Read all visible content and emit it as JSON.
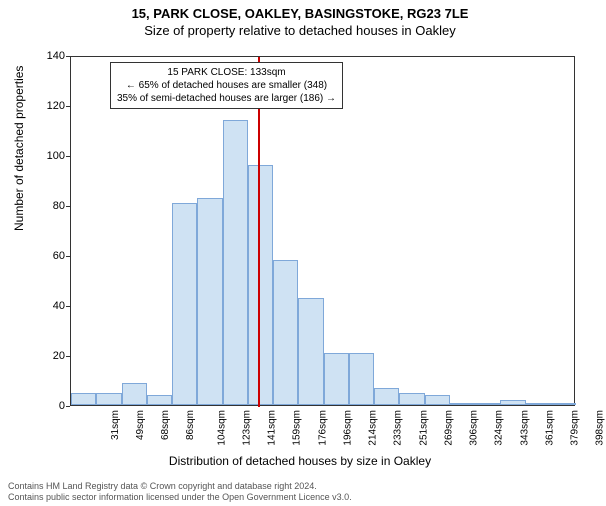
{
  "title_main": "15, PARK CLOSE, OAKLEY, BASINGSTOKE, RG23 7LE",
  "title_sub": "Size of property relative to detached houses in Oakley",
  "ylabel": "Number of detached properties",
  "xlabel": "Distribution of detached houses by size in Oakley",
  "chart": {
    "type": "histogram",
    "ylim": [
      0,
      140
    ],
    "ytick_step": 20,
    "yticks": [
      0,
      20,
      40,
      60,
      80,
      100,
      120,
      140
    ],
    "xtick_labels": [
      "31sqm",
      "49sqm",
      "68sqm",
      "86sqm",
      "104sqm",
      "123sqm",
      "141sqm",
      "159sqm",
      "176sqm",
      "196sqm",
      "214sqm",
      "233sqm",
      "251sqm",
      "269sqm",
      "306sqm",
      "324sqm",
      "343sqm",
      "361sqm",
      "379sqm",
      "398sqm"
    ],
    "bars": [
      5,
      5,
      9,
      4,
      81,
      83,
      114,
      96,
      58,
      43,
      21,
      21,
      7,
      5,
      4,
      1,
      1,
      2,
      1,
      0
    ],
    "bar_fill": "#cfe2f3",
    "bar_border": "#7fa8d9",
    "axis_color": "#333333",
    "background_color": "#ffffff",
    "marker_index": 7,
    "marker_color": "#cc0000"
  },
  "annotation": {
    "line1": "15 PARK CLOSE: 133sqm",
    "line2": "← 65% of detached houses are smaller (348)",
    "line3": "35% of semi-detached houses are larger (186) →"
  },
  "footer": {
    "line1": "Contains HM Land Registry data © Crown copyright and database right 2024.",
    "line2": "Contains public sector information licensed under the Open Government Licence v3.0."
  }
}
